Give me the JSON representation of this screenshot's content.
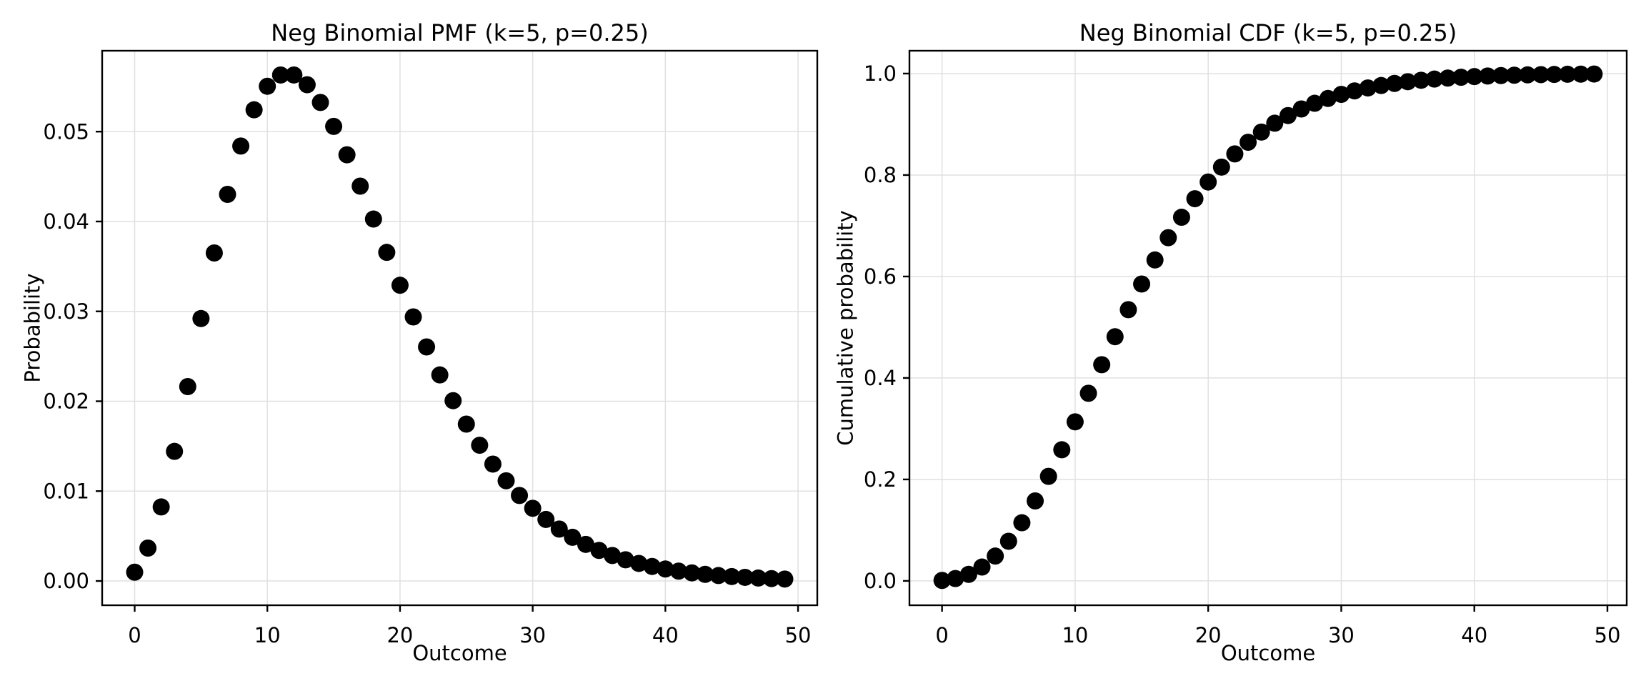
{
  "figure": {
    "background": "#ffffff",
    "text_color": "#000000",
    "spine_color": "#000000",
    "grid_color": "#e0e0e0",
    "marker_color": "#000000"
  },
  "chart_data": [
    {
      "id": "pmf",
      "type": "scatter",
      "title": "Neg Binomial PMF (k=5, p=0.25)",
      "xlabel": "Outcome",
      "ylabel": "Probability",
      "grid": true,
      "legend": null,
      "xlim": [
        -2.45,
        51.45
      ],
      "ylim": [
        -0.0027,
        0.059
      ],
      "xticks": [
        0,
        10,
        20,
        30,
        40,
        50
      ],
      "xtick_labels": [
        "0",
        "10",
        "20",
        "30",
        "40",
        "50"
      ],
      "yticks": [
        0.0,
        0.01,
        0.02,
        0.03,
        0.04,
        0.05
      ],
      "ytick_labels": [
        "0.00",
        "0.01",
        "0.02",
        "0.03",
        "0.04",
        "0.05"
      ],
      "x": [
        0,
        1,
        2,
        3,
        4,
        5,
        6,
        7,
        8,
        9,
        10,
        11,
        12,
        13,
        14,
        15,
        16,
        17,
        18,
        19,
        20,
        21,
        22,
        23,
        24,
        25,
        26,
        27,
        28,
        29,
        30,
        31,
        32,
        33,
        34,
        35,
        36,
        37,
        38,
        39,
        40,
        41,
        42,
        43,
        44,
        45,
        46,
        47,
        48,
        49
      ],
      "y": [
        0.000977,
        0.003662,
        0.00824,
        0.01442,
        0.021629,
        0.0292,
        0.036499,
        0.043017,
        0.048394,
        0.052427,
        0.055048,
        0.0563,
        0.0563,
        0.055216,
        0.053244,
        0.050583,
        0.047421,
        0.043933,
        0.040272,
        0.036564,
        0.032907,
        0.029381,
        0.026043,
        0.022929,
        0.020063,
        0.017455,
        0.015105,
        0.013007,
        0.011149,
        0.009515,
        0.008088,
        0.006848,
        0.005778,
        0.004859,
        0.004073,
        0.003404,
        0.002837,
        0.002357,
        0.001954,
        0.001616,
        0.001333,
        0.001097,
        0.000901,
        0.000739,
        0.000605,
        0.000494,
        0.000403,
        0.000328,
        0.000266,
        0.000216
      ]
    },
    {
      "id": "cdf",
      "type": "scatter",
      "title": "Neg Binomial CDF (k=5, p=0.25)",
      "xlabel": "Outcome",
      "ylabel": "Cumulative probability",
      "grid": true,
      "legend": null,
      "xlim": [
        -2.45,
        51.45
      ],
      "ylim": [
        -0.048,
        1.045
      ],
      "xticks": [
        0,
        10,
        20,
        30,
        40,
        50
      ],
      "xtick_labels": [
        "0",
        "10",
        "20",
        "30",
        "40",
        "50"
      ],
      "yticks": [
        0.0,
        0.2,
        0.4,
        0.6,
        0.8,
        1.0
      ],
      "ytick_labels": [
        "0.0",
        "0.2",
        "0.4",
        "0.6",
        "0.8",
        "1.0"
      ],
      "x": [
        0,
        1,
        2,
        3,
        4,
        5,
        6,
        7,
        8,
        9,
        10,
        11,
        12,
        13,
        14,
        15,
        16,
        17,
        18,
        19,
        20,
        21,
        22,
        23,
        24,
        25,
        26,
        27,
        28,
        29,
        30,
        31,
        32,
        33,
        34,
        35,
        36,
        37,
        38,
        39,
        40,
        41,
        42,
        43,
        44,
        45,
        46,
        47,
        48,
        49
      ],
      "y": [
        0.000977,
        0.004639,
        0.012879,
        0.027298,
        0.048928,
        0.078127,
        0.114627,
        0.157644,
        0.206038,
        0.258465,
        0.313514,
        0.369814,
        0.426114,
        0.48133,
        0.534575,
        0.585158,
        0.632579,
        0.676512,
        0.716784,
        0.753348,
        0.786256,
        0.815637,
        0.84168,
        0.864609,
        0.884672,
        0.902127,
        0.917232,
        0.930239,
        0.941388,
        0.950903,
        0.958991,
        0.965839,
        0.971617,
        0.976476,
        0.980549,
        0.983953,
        0.98679,
        0.989147,
        0.991101,
        0.992717,
        0.99405,
        0.995147,
        0.996048,
        0.996787,
        0.997392,
        0.997886,
        0.998289,
        0.998617,
        0.998883,
        0.999099
      ]
    }
  ]
}
